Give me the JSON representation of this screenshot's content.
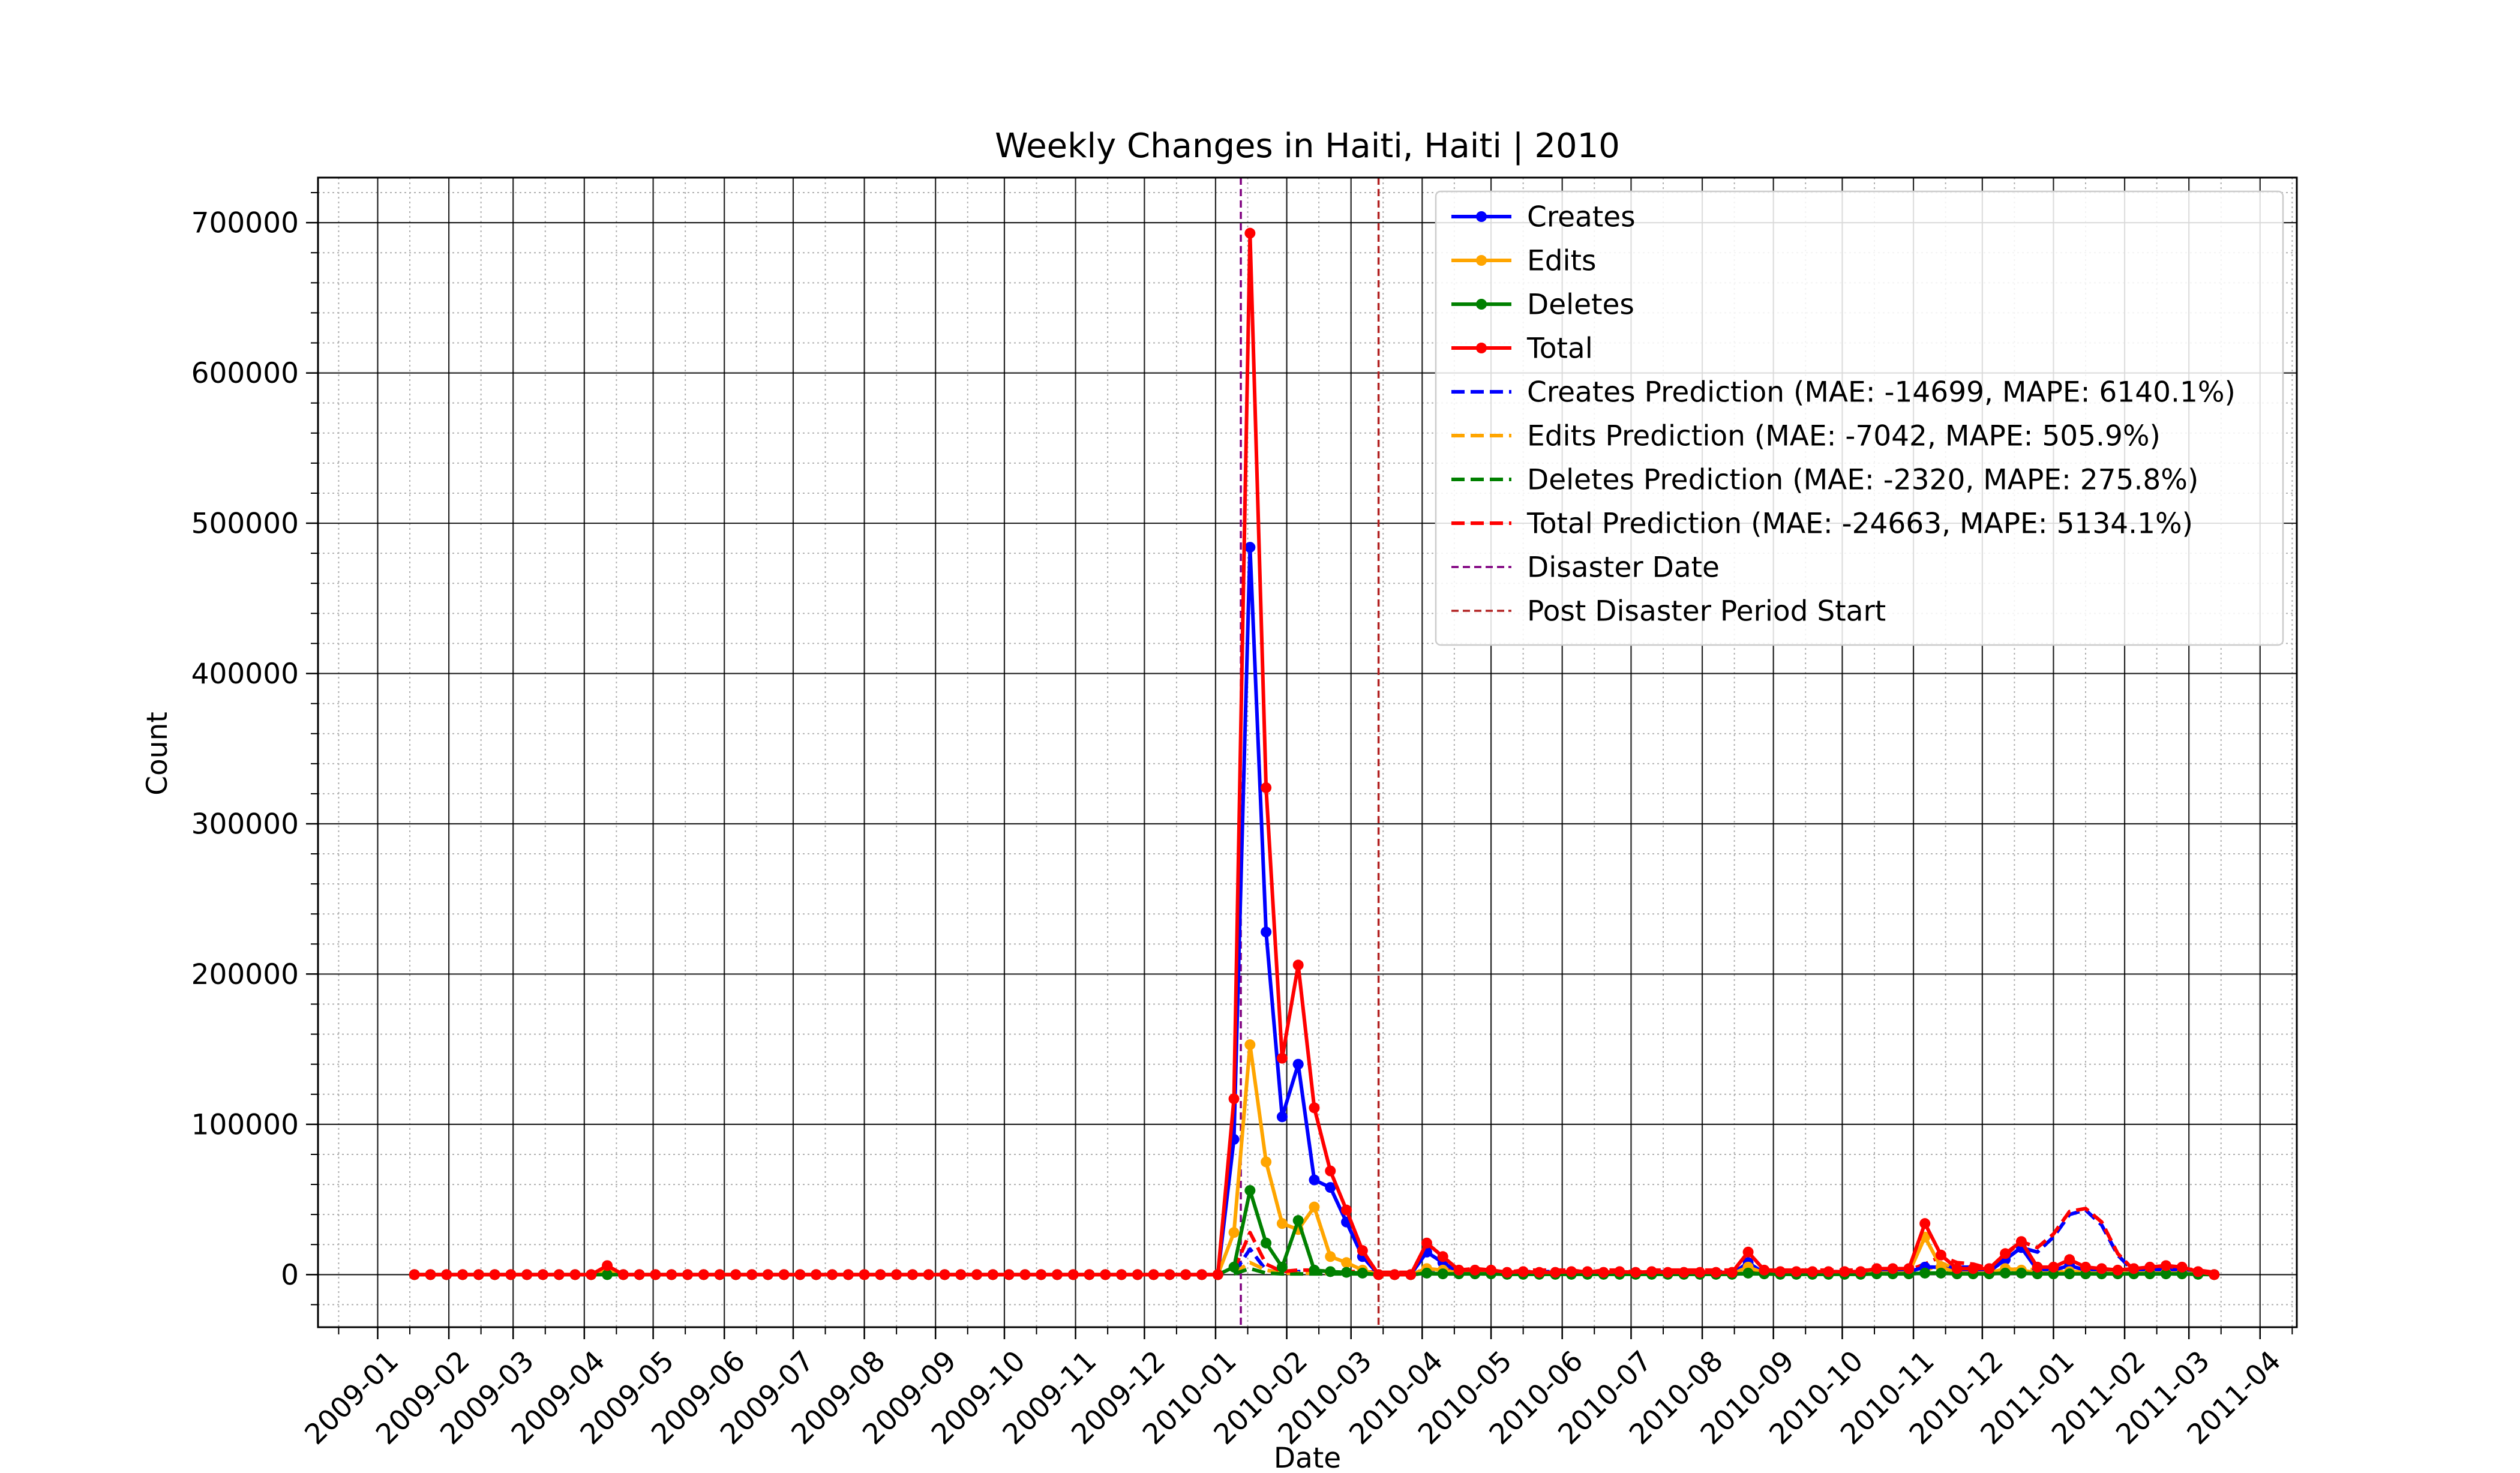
{
  "chart_data": {
    "type": "line",
    "title": "Weekly Changes in Haiti, Haiti | 2010",
    "xlabel": "Date",
    "ylabel": "Count",
    "xlim": [
      "2008-12-06",
      "2011-04-17"
    ],
    "ylim": [
      -35000,
      730000
    ],
    "x_ticks": [
      "2009-01-01",
      "2009-02-01",
      "2009-03-01",
      "2009-04-01",
      "2009-05-01",
      "2009-06-01",
      "2009-07-01",
      "2009-08-01",
      "2009-09-01",
      "2009-10-01",
      "2009-11-01",
      "2009-12-01",
      "2010-01-01",
      "2010-02-01",
      "2010-03-01",
      "2010-04-01",
      "2010-05-01",
      "2010-06-01",
      "2010-07-01",
      "2010-08-01",
      "2010-09-01",
      "2010-10-01",
      "2010-11-01",
      "2010-12-01",
      "2011-01-01",
      "2011-02-01",
      "2011-03-01",
      "2011-04-01"
    ],
    "x_tick_labels": [
      "2009-01",
      "2009-02",
      "2009-03",
      "2009-04",
      "2009-05",
      "2009-06",
      "2009-07",
      "2009-08",
      "2009-09",
      "2009-10",
      "2009-11",
      "2009-12",
      "2010-01",
      "2010-02",
      "2010-03",
      "2010-04",
      "2010-05",
      "2010-06",
      "2010-07",
      "2010-08",
      "2010-09",
      "2010-10",
      "2010-11",
      "2010-12",
      "2011-01",
      "2011-02",
      "2011-03",
      "2011-04"
    ],
    "y_ticks": [
      0,
      100000,
      200000,
      300000,
      400000,
      500000,
      600000,
      700000
    ],
    "y_tick_labels": [
      "0",
      "100000",
      "200000",
      "300000",
      "400000",
      "500000",
      "600000",
      "700000"
    ],
    "grid": true,
    "minor_grid": true,
    "legend_position": "upper-right",
    "dates": [
      "2009-01-17",
      "2009-01-24",
      "2009-01-31",
      "2009-02-07",
      "2009-02-14",
      "2009-02-21",
      "2009-02-28",
      "2009-03-07",
      "2009-03-14",
      "2009-03-21",
      "2009-03-28",
      "2009-04-04",
      "2009-04-11",
      "2009-04-18",
      "2009-04-25",
      "2009-05-02",
      "2009-05-09",
      "2009-05-16",
      "2009-05-23",
      "2009-05-30",
      "2009-06-06",
      "2009-06-13",
      "2009-06-20",
      "2009-06-27",
      "2009-07-04",
      "2009-07-11",
      "2009-07-18",
      "2009-07-25",
      "2009-08-01",
      "2009-08-08",
      "2009-08-15",
      "2009-08-22",
      "2009-08-29",
      "2009-09-05",
      "2009-09-12",
      "2009-09-19",
      "2009-09-26",
      "2009-10-03",
      "2009-10-10",
      "2009-10-17",
      "2009-10-24",
      "2009-10-31",
      "2009-11-07",
      "2009-11-14",
      "2009-11-21",
      "2009-11-28",
      "2009-12-05",
      "2009-12-12",
      "2009-12-19",
      "2009-12-26",
      "2010-01-02",
      "2010-01-09",
      "2010-01-16",
      "2010-01-23",
      "2010-01-30",
      "2010-02-06",
      "2010-02-13",
      "2010-02-20",
      "2010-02-27",
      "2010-03-06",
      "2010-03-13",
      "2010-03-20",
      "2010-03-27",
      "2010-04-03",
      "2010-04-10",
      "2010-04-17",
      "2010-04-24",
      "2010-05-01",
      "2010-05-08",
      "2010-05-15",
      "2010-05-22",
      "2010-05-29",
      "2010-06-05",
      "2010-06-12",
      "2010-06-19",
      "2010-06-26",
      "2010-07-03",
      "2010-07-10",
      "2010-07-17",
      "2010-07-24",
      "2010-07-31",
      "2010-08-07",
      "2010-08-14",
      "2010-08-21",
      "2010-08-28",
      "2010-09-04",
      "2010-09-11",
      "2010-09-18",
      "2010-09-25",
      "2010-10-02",
      "2010-10-09",
      "2010-10-16",
      "2010-10-23",
      "2010-10-30",
      "2010-11-06",
      "2010-11-13",
      "2010-11-20",
      "2010-11-27",
      "2010-12-04",
      "2010-12-11",
      "2010-12-18",
      "2010-12-25",
      "2011-01-01",
      "2011-01-08",
      "2011-01-15",
      "2011-01-22",
      "2011-01-29",
      "2011-02-05",
      "2011-02-12",
      "2011-02-19",
      "2011-02-26",
      "2011-03-05",
      "2011-03-12"
    ],
    "series": [
      {
        "name": "Creates",
        "color": "#0000ff",
        "style": "solid-marker",
        "values": [
          0,
          0,
          0,
          0,
          0,
          0,
          0,
          0,
          0,
          0,
          0,
          0,
          3000,
          0,
          0,
          0,
          0,
          0,
          0,
          0,
          0,
          0,
          0,
          0,
          0,
          0,
          0,
          0,
          0,
          0,
          0,
          0,
          0,
          0,
          0,
          0,
          0,
          0,
          0,
          0,
          0,
          0,
          0,
          0,
          0,
          0,
          0,
          0,
          0,
          0,
          0,
          90000,
          484000,
          228000,
          105000,
          140000,
          63000,
          58000,
          35000,
          12000,
          0,
          0,
          0,
          15000,
          8000,
          1500,
          1000,
          1000,
          500,
          1000,
          500,
          500,
          1000,
          1000,
          500,
          1000,
          500,
          1000,
          500,
          500,
          500,
          500,
          500,
          8000,
          1000,
          1000,
          1000,
          1000,
          1000,
          1000,
          1000,
          2000,
          2000,
          2000,
          5000,
          5000,
          2000,
          2000,
          2000,
          10000,
          18000,
          3000,
          3000,
          6000,
          3000,
          2000,
          1000,
          2000,
          3000,
          3000,
          2000,
          1000,
          0
        ]
      },
      {
        "name": "Edits",
        "color": "#ffa500",
        "style": "solid-marker",
        "values": [
          0,
          0,
          0,
          0,
          0,
          0,
          0,
          0,
          0,
          0,
          0,
          0,
          3000,
          0,
          0,
          0,
          0,
          0,
          0,
          0,
          0,
          0,
          0,
          0,
          0,
          0,
          0,
          0,
          0,
          0,
          0,
          0,
          0,
          0,
          0,
          0,
          0,
          0,
          0,
          0,
          0,
          0,
          0,
          0,
          0,
          0,
          0,
          0,
          0,
          0,
          0,
          28000,
          153000,
          75000,
          34000,
          30000,
          45000,
          12000,
          8000,
          3000,
          0,
          0,
          0,
          4000,
          3000,
          1000,
          1000,
          1000,
          500,
          500,
          500,
          500,
          500,
          500,
          500,
          500,
          500,
          500,
          500,
          500,
          500,
          500,
          500,
          5000,
          1000,
          500,
          500,
          500,
          500,
          500,
          500,
          1000,
          1000,
          1000,
          25000,
          5000,
          1000,
          1000,
          1000,
          4000,
          3000,
          1000,
          1000,
          2000,
          1000,
          1000,
          1000,
          1000,
          1000,
          1000,
          1000,
          500,
          0
        ]
      },
      {
        "name": "Deletes",
        "color": "#008000",
        "style": "solid-marker",
        "values": [
          0,
          0,
          0,
          0,
          0,
          0,
          0,
          0,
          0,
          0,
          0,
          0,
          0,
          0,
          0,
          0,
          0,
          0,
          0,
          0,
          0,
          0,
          0,
          0,
          0,
          0,
          0,
          0,
          0,
          0,
          0,
          0,
          0,
          0,
          0,
          0,
          0,
          0,
          0,
          0,
          0,
          0,
          0,
          0,
          0,
          0,
          0,
          0,
          0,
          0,
          0,
          5000,
          56000,
          21000,
          5000,
          36000,
          3000,
          2000,
          1500,
          1000,
          0,
          0,
          0,
          1000,
          500,
          500,
          500,
          500,
          200,
          200,
          200,
          200,
          200,
          200,
          200,
          200,
          200,
          200,
          200,
          200,
          200,
          200,
          200,
          1000,
          500,
          200,
          200,
          200,
          200,
          200,
          200,
          500,
          500,
          500,
          1000,
          1000,
          500,
          500,
          500,
          1000,
          1000,
          500,
          500,
          500,
          500,
          500,
          500,
          500,
          500,
          500,
          500,
          200,
          0
        ]
      },
      {
        "name": "Total",
        "color": "#ff0000",
        "style": "solid-marker",
        "values": [
          0,
          0,
          0,
          0,
          0,
          0,
          0,
          0,
          0,
          0,
          0,
          0,
          6000,
          0,
          0,
          0,
          0,
          0,
          0,
          0,
          0,
          0,
          0,
          0,
          0,
          0,
          0,
          0,
          0,
          0,
          0,
          0,
          0,
          0,
          0,
          0,
          0,
          0,
          0,
          0,
          0,
          0,
          0,
          0,
          0,
          0,
          0,
          0,
          0,
          0,
          0,
          117000,
          693000,
          324000,
          144000,
          206000,
          111000,
          69000,
          43000,
          16000,
          0,
          0,
          0,
          21000,
          12000,
          3000,
          3000,
          3000,
          1500,
          2000,
          1500,
          1500,
          2000,
          2000,
          1500,
          2000,
          1500,
          2000,
          1500,
          1500,
          1500,
          1500,
          1500,
          15000,
          3000,
          2000,
          2000,
          2000,
          2000,
          2000,
          2000,
          4000,
          4000,
          4000,
          34000,
          13000,
          4000,
          4000,
          4000,
          14000,
          22000,
          5000,
          5000,
          10000,
          5000,
          4000,
          3000,
          4000,
          5000,
          6000,
          5000,
          2000,
          0
        ]
      },
      {
        "name": "Creates Prediction (MAE: -14699, MAPE: 6140.1%)",
        "color": "#0000ff",
        "style": "dashed",
        "values": [
          null,
          null,
          null,
          null,
          null,
          null,
          null,
          null,
          null,
          null,
          null,
          null,
          null,
          null,
          null,
          null,
          null,
          null,
          null,
          null,
          null,
          null,
          null,
          null,
          null,
          null,
          null,
          null,
          null,
          null,
          null,
          null,
          null,
          null,
          null,
          null,
          null,
          null,
          null,
          null,
          null,
          null,
          null,
          null,
          null,
          null,
          null,
          null,
          null,
          null,
          null,
          1000,
          17000,
          3000,
          1000,
          2000,
          2000,
          1000,
          1000,
          1000,
          1000,
          1000,
          1000,
          2000,
          2000,
          2000,
          3000,
          2000,
          1000,
          2000,
          2000,
          2000,
          2000,
          1000,
          2000,
          2000,
          1000,
          2000,
          2000,
          2000,
          2000,
          2000,
          2000,
          2000,
          2000,
          2000,
          2000,
          2000,
          2000,
          2000,
          2000,
          2000,
          2000,
          2000,
          5000,
          5000,
          5000,
          5000,
          3000,
          10000,
          18000,
          15000,
          25000,
          40000,
          43000,
          33000,
          13000,
          2000,
          3000,
          4000,
          3000,
          2000,
          1000
        ]
      },
      {
        "name": "Edits Prediction (MAE: -7042, MAPE: 505.9%)",
        "color": "#ffa500",
        "style": "dashed",
        "values": [
          null,
          null,
          null,
          null,
          null,
          null,
          null,
          null,
          null,
          null,
          null,
          null,
          null,
          null,
          null,
          null,
          null,
          null,
          null,
          null,
          null,
          null,
          null,
          null,
          null,
          null,
          null,
          null,
          null,
          null,
          null,
          null,
          null,
          null,
          null,
          null,
          null,
          null,
          null,
          null,
          null,
          null,
          null,
          null,
          null,
          null,
          null,
          null,
          null,
          null,
          null,
          1000,
          8000,
          3000,
          1000,
          1000,
          1000,
          1000,
          1000,
          1000,
          500,
          500,
          500,
          1000,
          1000,
          1000,
          1000,
          1000,
          500,
          1000,
          1000,
          1000,
          1000,
          500,
          1000,
          1000,
          500,
          1000,
          1000,
          1000,
          1000,
          1000,
          1000,
          1000,
          1000,
          1000,
          1000,
          1000,
          1000,
          1000,
          1000,
          1000,
          1000,
          1000,
          2000,
          8000,
          3000,
          2000,
          1000,
          3000,
          4000,
          3000,
          2000,
          2000,
          2000,
          2000,
          1000,
          1000,
          1000,
          1000,
          1000,
          1000,
          500
        ]
      },
      {
        "name": "Deletes Prediction (MAE: -2320, MAPE: 275.8%)",
        "color": "#008000",
        "style": "dashed",
        "values": [
          null,
          null,
          null,
          null,
          null,
          null,
          null,
          null,
          null,
          null,
          null,
          null,
          null,
          null,
          null,
          null,
          null,
          null,
          null,
          null,
          null,
          null,
          null,
          null,
          null,
          null,
          null,
          null,
          null,
          null,
          null,
          null,
          null,
          null,
          null,
          null,
          null,
          null,
          null,
          null,
          null,
          null,
          null,
          null,
          null,
          null,
          null,
          null,
          null,
          null,
          null,
          500,
          4000,
          1000,
          500,
          500,
          500,
          500,
          500,
          500,
          200,
          200,
          200,
          500,
          500,
          500,
          500,
          500,
          200,
          500,
          500,
          500,
          500,
          200,
          500,
          500,
          200,
          500,
          500,
          500,
          500,
          500,
          500,
          500,
          500,
          500,
          500,
          500,
          500,
          500,
          500,
          500,
          500,
          500,
          1000,
          1000,
          1000,
          1000,
          500,
          1000,
          1000,
          1000,
          1000,
          1000,
          1000,
          1000,
          500,
          500,
          500,
          500,
          500,
          500,
          200
        ]
      },
      {
        "name": "Total Prediction (MAE: -24663, MAPE: 5134.1%)",
        "color": "#ff0000",
        "style": "dashed",
        "values": [
          null,
          null,
          null,
          null,
          null,
          null,
          null,
          null,
          null,
          null,
          null,
          null,
          null,
          null,
          null,
          null,
          null,
          null,
          null,
          null,
          null,
          null,
          null,
          null,
          null,
          null,
          null,
          null,
          null,
          null,
          null,
          null,
          null,
          null,
          null,
          null,
          null,
          null,
          null,
          null,
          null,
          null,
          null,
          null,
          null,
          null,
          null,
          null,
          null,
          null,
          null,
          3000,
          28000,
          7000,
          2000,
          3000,
          3000,
          2000,
          2000,
          2000,
          1500,
          1500,
          1500,
          3000,
          3000,
          3000,
          4000,
          3000,
          1500,
          3000,
          3000,
          3000,
          3000,
          1500,
          3000,
          3000,
          1500,
          3000,
          3000,
          3000,
          3000,
          3000,
          3000,
          3000,
          3000,
          3000,
          3000,
          3000,
          3000,
          3000,
          3000,
          3000,
          3000,
          3000,
          7000,
          12000,
          8000,
          7000,
          4000,
          13000,
          22000,
          18000,
          27000,
          42000,
          44000,
          35000,
          14000,
          3000,
          4000,
          5000,
          4000,
          3000,
          1500
        ]
      }
    ],
    "vlines": [
      {
        "name": "Disaster Date",
        "date": "2010-01-12",
        "color": "#800080",
        "style": "dashed"
      },
      {
        "name": "Post Disaster Period Start",
        "date": "2010-03-13",
        "color": "#b22222",
        "style": "dashed"
      }
    ]
  }
}
